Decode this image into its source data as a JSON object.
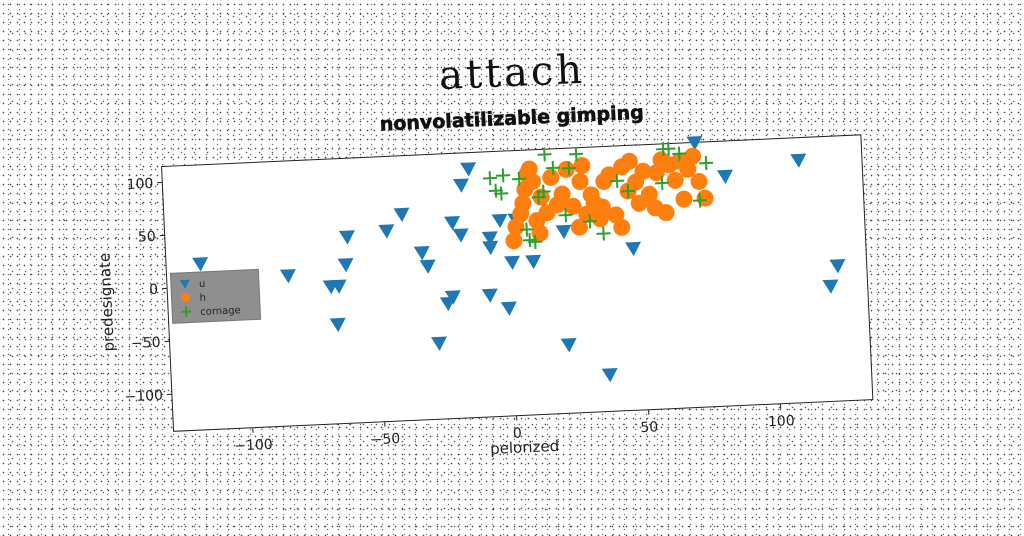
{
  "page": {
    "title": "attach"
  },
  "chart_data": {
    "type": "scatter",
    "title": "nonvolatilizable gimping",
    "xlabel": "pelorized",
    "ylabel": "predesignate",
    "xlim": [
      -130,
      135
    ],
    "ylim": [
      -135,
      115
    ],
    "xticks": [
      -100,
      -50,
      0,
      50,
      100
    ],
    "yticks": [
      -100,
      -50,
      0,
      50,
      100
    ],
    "xtick_labels": [
      "−100",
      "−50",
      "0",
      "50",
      "100"
    ],
    "ytick_labels": [
      "−100",
      "−50",
      "0",
      "50",
      "100"
    ],
    "grid": false,
    "legend_position": "center-left",
    "series": [
      {
        "name": "u",
        "marker": "triangle-down",
        "color": "#1f77b4",
        "points": [
          [
            -117,
            22
          ],
          [
            -84,
            7
          ],
          [
            -68,
            -5
          ],
          [
            -65,
            -5
          ],
          [
            -66,
            -41
          ],
          [
            -62,
            15
          ],
          [
            -61,
            41
          ],
          [
            -46,
            45
          ],
          [
            -40,
            60
          ],
          [
            -33,
            23
          ],
          [
            -31,
            10
          ],
          [
            -28,
            -63
          ],
          [
            -24,
            -26
          ],
          [
            -22,
            -20
          ],
          [
            -21,
            50
          ],
          [
            -18,
            38
          ],
          [
            -17,
            85
          ],
          [
            -14,
            100
          ],
          [
            -8,
            -20
          ],
          [
            -7,
            34
          ],
          [
            -7,
            25
          ],
          [
            -3,
            50
          ],
          [
            -1,
            -33
          ],
          [
            1,
            10
          ],
          [
            3,
            50
          ],
          [
            9,
            10
          ],
          [
            21,
            37
          ],
          [
            21,
            -70
          ],
          [
            36,
            -100
          ],
          [
            47,
            18
          ],
          [
            72,
            115
          ],
          [
            83,
            82
          ],
          [
            111,
            94
          ],
          [
            121,
            -26
          ],
          [
            124,
            -7
          ]
        ]
      },
      {
        "name": "h",
        "marker": "circle",
        "color": "#ff7f0e",
        "points": [
          [
            2,
            30
          ],
          [
            3,
            43
          ],
          [
            5,
            55
          ],
          [
            6,
            65
          ],
          [
            7,
            78
          ],
          [
            8,
            92
          ],
          [
            9,
            97
          ],
          [
            10,
            85
          ],
          [
            11,
            48
          ],
          [
            12,
            36
          ],
          [
            13,
            70
          ],
          [
            15,
            55
          ],
          [
            17,
            88
          ],
          [
            19,
            62
          ],
          [
            21,
            72
          ],
          [
            23,
            95
          ],
          [
            25,
            60
          ],
          [
            27,
            40
          ],
          [
            28,
            83
          ],
          [
            29,
            98
          ],
          [
            30,
            52
          ],
          [
            32,
            70
          ],
          [
            33,
            62
          ],
          [
            35,
            47
          ],
          [
            36,
            58
          ],
          [
            37,
            82
          ],
          [
            39,
            88
          ],
          [
            41,
            50
          ],
          [
            43,
            38
          ],
          [
            44,
            95
          ],
          [
            46,
            72
          ],
          [
            47,
            100
          ],
          [
            49,
            80
          ],
          [
            50,
            60
          ],
          [
            52,
            90
          ],
          [
            54,
            68
          ],
          [
            56,
            55
          ],
          [
            57,
            88
          ],
          [
            59,
            100
          ],
          [
            60,
            50
          ],
          [
            62,
            95
          ],
          [
            64,
            80
          ],
          [
            66,
            98
          ],
          [
            67,
            62
          ],
          [
            69,
            90
          ],
          [
            71,
            102
          ],
          [
            73,
            78
          ],
          [
            75,
            62
          ]
        ]
      },
      {
        "name": "cornage",
        "marker": "plus",
        "color": "#2ca02c",
        "points": [
          [
            -6,
            90
          ],
          [
            -4,
            78
          ],
          [
            -2,
            75
          ],
          [
            -1,
            92
          ],
          [
            5,
            88
          ],
          [
            7,
            40
          ],
          [
            8,
            30
          ],
          [
            10,
            28
          ],
          [
            12,
            70
          ],
          [
            14,
            75
          ],
          [
            15,
            110
          ],
          [
            18,
            97
          ],
          [
            22,
            52
          ],
          [
            24,
            96
          ],
          [
            27,
            109
          ],
          [
            31,
            45
          ],
          [
            36,
            33
          ],
          [
            42,
            82
          ],
          [
            46,
            72
          ],
          [
            59,
            78
          ],
          [
            60,
            110
          ],
          [
            62,
            110
          ],
          [
            66,
            105
          ],
          [
            73,
            60
          ],
          [
            76,
            95
          ]
        ]
      }
    ]
  }
}
